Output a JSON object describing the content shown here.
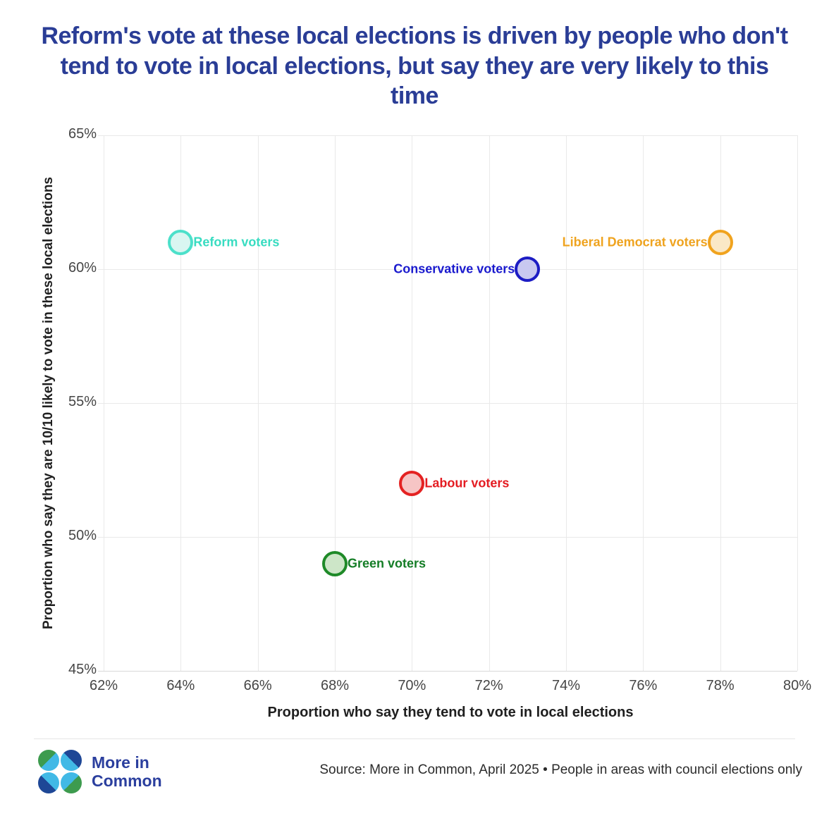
{
  "chart_data": {
    "type": "scatter",
    "title": "Reform's vote at these local elections is driven by people who don't tend to vote in local elections, but say they are very likely to this time",
    "xlabel": "Proportion who say they tend to vote in local elections",
    "ylabel": "Proportion who say they are 10/10 likely to vote in these local elections",
    "xlim": [
      62,
      80
    ],
    "ylim": [
      45,
      65
    ],
    "x_ticks": [
      62,
      64,
      66,
      68,
      70,
      72,
      74,
      76,
      78,
      80
    ],
    "y_ticks": [
      65,
      60,
      55,
      50,
      45
    ],
    "tick_suffix": "%",
    "grid": true,
    "legend": "none (points labelled directly)",
    "points": [
      {
        "label": "Reform voters",
        "x": 64,
        "y": 61,
        "stroke": "#4ce0ca",
        "fill": "#d9f6f1",
        "label_color": "#38dcc1",
        "label_side": "right"
      },
      {
        "label": "Conservative voters",
        "x": 73,
        "y": 60,
        "stroke": "#1c1cc4",
        "fill": "#c8c8f0",
        "label_color": "#1a1ace",
        "label_side": "left"
      },
      {
        "label": "Liberal Democrat voters",
        "x": 78,
        "y": 61,
        "stroke": "#f0a31e",
        "fill": "#fae8c6",
        "label_color": "#efa31e",
        "label_side": "left"
      },
      {
        "label": "Labour voters",
        "x": 70,
        "y": 52,
        "stroke": "#e42222",
        "fill": "#f6c5c5",
        "label_color": "#e41c22",
        "label_side": "right"
      },
      {
        "label": "Green voters",
        "x": 68,
        "y": 49,
        "stroke": "#1e8a28",
        "fill": "#cde6c8",
        "label_color": "#147d26",
        "label_side": "right"
      }
    ]
  },
  "footer": {
    "logo_line1": "More in",
    "logo_line2": "Common",
    "source": "Source: More in Common, April 2025 • People in areas with council elections only"
  },
  "colors": {
    "title": "#2a3d96",
    "grid": "#e9e9e9",
    "axis_text": "#454545",
    "logo_blue": "#2b3f9e"
  }
}
